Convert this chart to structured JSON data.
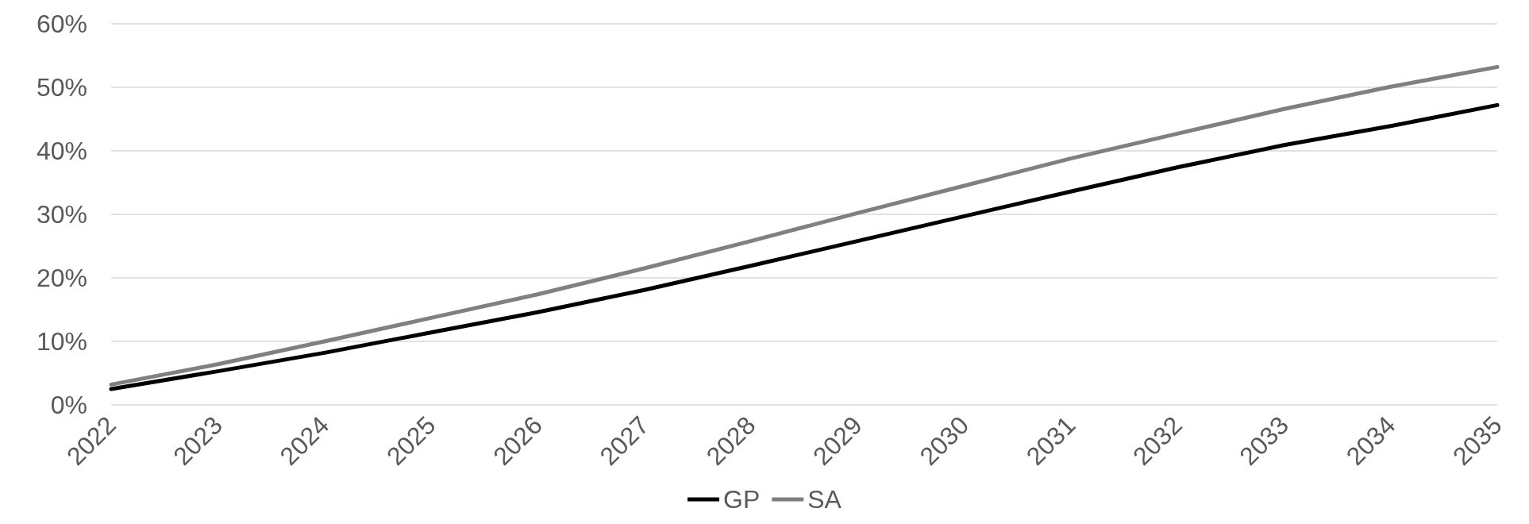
{
  "chart_data": {
    "type": "line",
    "categories": [
      "2022",
      "2023",
      "2024",
      "2025",
      "2026",
      "2027",
      "2028",
      "2029",
      "2030",
      "2031",
      "2032",
      "2033",
      "2034",
      "2035"
    ],
    "series": [
      {
        "name": "GP",
        "color": "#000000",
        "values": [
          2.5,
          5.3,
          8.2,
          11.4,
          14.6,
          18.1,
          21.9,
          25.8,
          29.7,
          33.6,
          37.4,
          40.9,
          43.9,
          47.2
        ]
      },
      {
        "name": "SA",
        "color": "#808080",
        "values": [
          3.2,
          6.4,
          10.0,
          13.7,
          17.4,
          21.5,
          25.8,
          30.2,
          34.5,
          38.8,
          42.7,
          46.6,
          50.1,
          53.2
        ]
      }
    ],
    "ylim": [
      0,
      60
    ],
    "yticks": [
      {
        "value": 0,
        "label": "0%"
      },
      {
        "value": 10,
        "label": "10%"
      },
      {
        "value": 20,
        "label": "20%"
      },
      {
        "value": 30,
        "label": "30%"
      },
      {
        "value": 40,
        "label": "40%"
      },
      {
        "value": 50,
        "label": "50%"
      },
      {
        "value": 60,
        "label": "60%"
      }
    ],
    "grid": "y",
    "legend": "bottom",
    "marker": "none",
    "line_style": "solid"
  }
}
